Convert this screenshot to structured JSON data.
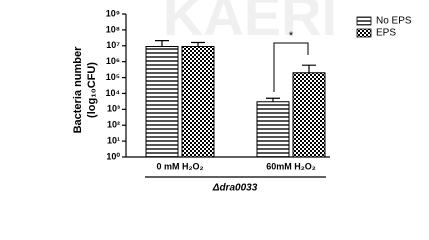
{
  "chart_data": {
    "type": "bar",
    "watermark": "KAERI",
    "ylabel": [
      "Bacteria number",
      "(log₁₀CFU)"
    ],
    "categories": [
      "0 mM H₂O₂",
      "60mM H₂O₂"
    ],
    "group_label": "Δdra0033",
    "log_scale": true,
    "series": [
      {
        "name": "No EPS",
        "pattern": "hstripe",
        "color": "#000000",
        "values": [
          9000000,
          3000
        ],
        "errors": [
          12000000,
          2000
        ]
      },
      {
        "name": "EPS",
        "pattern": "checker",
        "color": "#000000",
        "values": [
          9000000,
          200000
        ],
        "errors": [
          7000000,
          400000
        ]
      }
    ],
    "ylim": [
      1,
      1000000000
    ],
    "yticks": [
      {
        "value": 1,
        "label": "10⁰"
      },
      {
        "value": 10,
        "label": "10¹"
      },
      {
        "value": 100,
        "label": "10²"
      },
      {
        "value": 1000,
        "label": "10³"
      },
      {
        "value": 10000,
        "label": "10⁴"
      },
      {
        "value": 100000,
        "label": "10⁵"
      },
      {
        "value": 1000000,
        "label": "10⁶"
      },
      {
        "value": 10000000,
        "label": "10⁷"
      },
      {
        "value": 100000000,
        "label": "10⁸"
      },
      {
        "value": 1000000000,
        "label": "10⁹"
      }
    ],
    "annotations": [
      "*"
    ],
    "legend": "top-right"
  }
}
